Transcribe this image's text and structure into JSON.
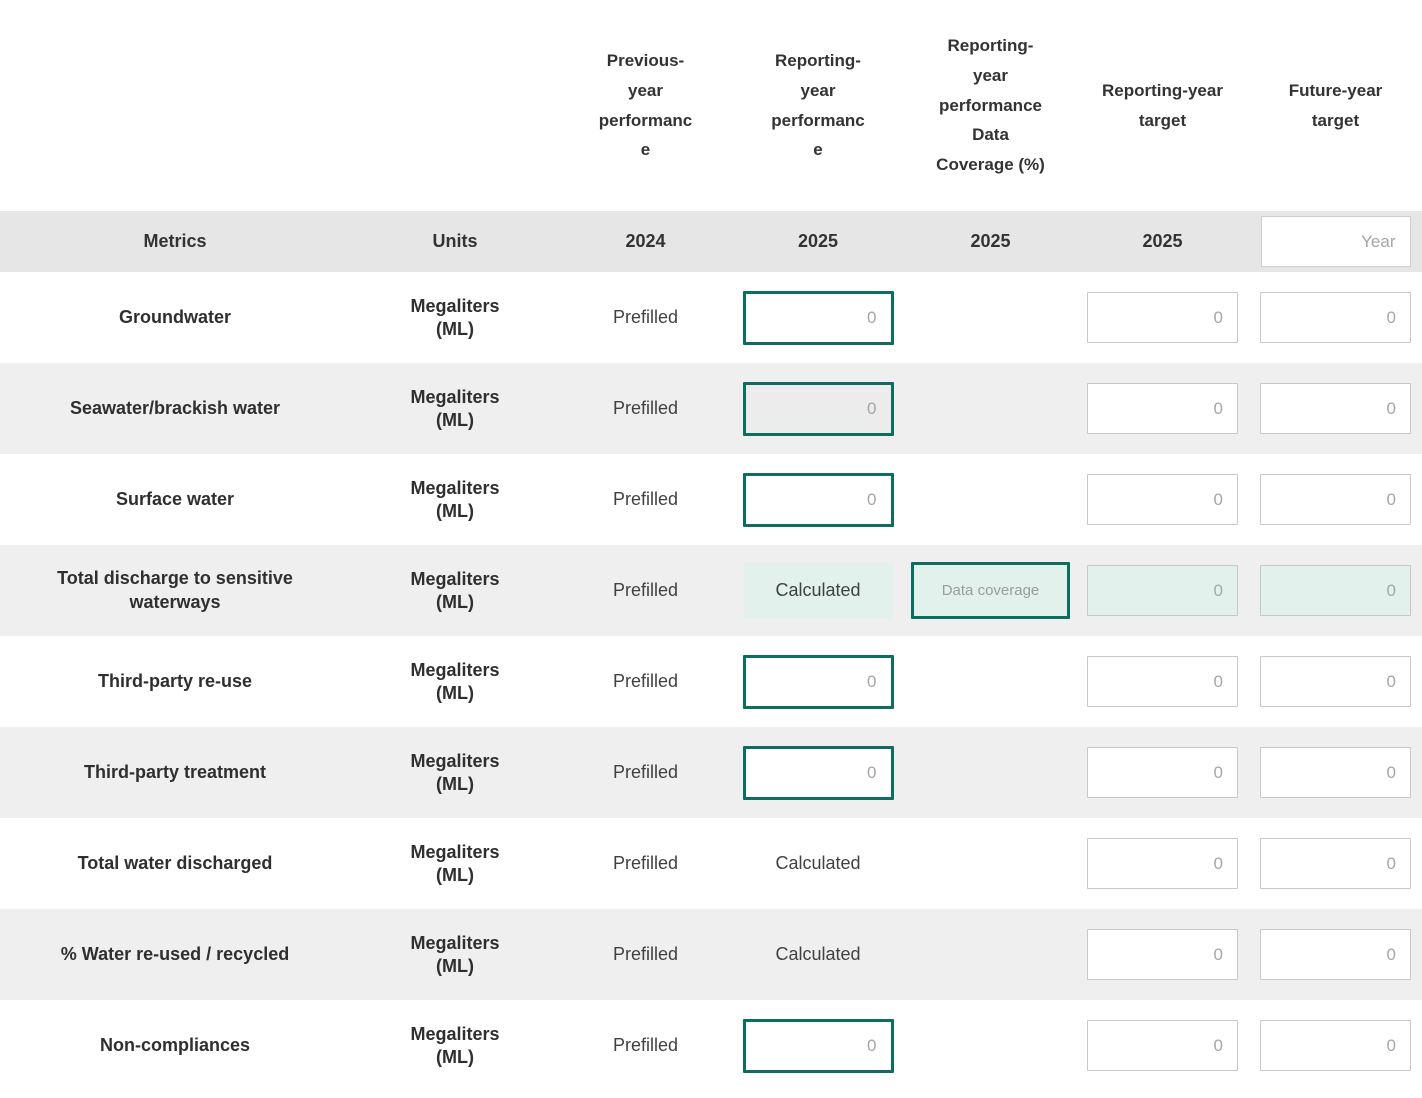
{
  "colors": {
    "accent_teal": "#0e6c60",
    "mint_background": "#e3f1ec",
    "row_stripe": "#efefef",
    "header_band": "#e6e6e6",
    "input_border": "#c8c8c8",
    "placeholder_gray": "#a6a6a6"
  },
  "column_headers": {
    "previous": "Previous-year performance",
    "reporting": "Reporting-year performance",
    "coverage": "Reporting-year performance Data Coverage (%)",
    "target": "Reporting-year target",
    "future": "Future-year target"
  },
  "band": {
    "metrics": "Metrics",
    "units": "Units",
    "previous_year": "2024",
    "reporting_year": "2025",
    "coverage_year": "2025",
    "target_year": "2025",
    "future_year_placeholder": "Year"
  },
  "rows": [
    {
      "metric": "Groundwater",
      "unit": "Megaliters (ML)",
      "previous": "Prefilled",
      "reporting_placeholder": "0",
      "target_placeholder": "0",
      "future_placeholder": "0"
    },
    {
      "metric": "Seawater/brackish water",
      "unit": "Megaliters (ML)",
      "previous": "Prefilled",
      "reporting_placeholder": "0",
      "target_placeholder": "0",
      "future_placeholder": "0"
    },
    {
      "metric": "Surface water",
      "unit": "Megaliters (ML)",
      "previous": "Prefilled",
      "reporting_placeholder": "0",
      "target_placeholder": "0",
      "future_placeholder": "0"
    },
    {
      "metric": "Total discharge to sensitive waterways",
      "unit": "Megaliters (ML)",
      "previous": "Prefilled",
      "reporting_text": "Calculated",
      "coverage_placeholder": "Data coverage",
      "target_placeholder": "0",
      "future_placeholder": "0"
    },
    {
      "metric": "Third-party re-use",
      "unit": "Megaliters (ML)",
      "previous": "Prefilled",
      "reporting_placeholder": "0",
      "target_placeholder": "0",
      "future_placeholder": "0"
    },
    {
      "metric": "Third-party treatment",
      "unit": "Megaliters (ML)",
      "previous": "Prefilled",
      "reporting_placeholder": "0",
      "target_placeholder": "0",
      "future_placeholder": "0"
    },
    {
      "metric": "Total water discharged",
      "unit": "Megaliters (ML)",
      "previous": "Prefilled",
      "reporting_text": "Calculated",
      "target_placeholder": "0",
      "future_placeholder": "0"
    },
    {
      "metric": "% Water re-used / recycled",
      "unit": "Megaliters (ML)",
      "previous": "Prefilled",
      "reporting_text": "Calculated",
      "target_placeholder": "0",
      "future_placeholder": "0"
    },
    {
      "metric": "Non-compliances",
      "unit": "Megaliters (ML)",
      "previous": "Prefilled",
      "reporting_placeholder": "0",
      "target_placeholder": "0",
      "future_placeholder": "0"
    }
  ]
}
